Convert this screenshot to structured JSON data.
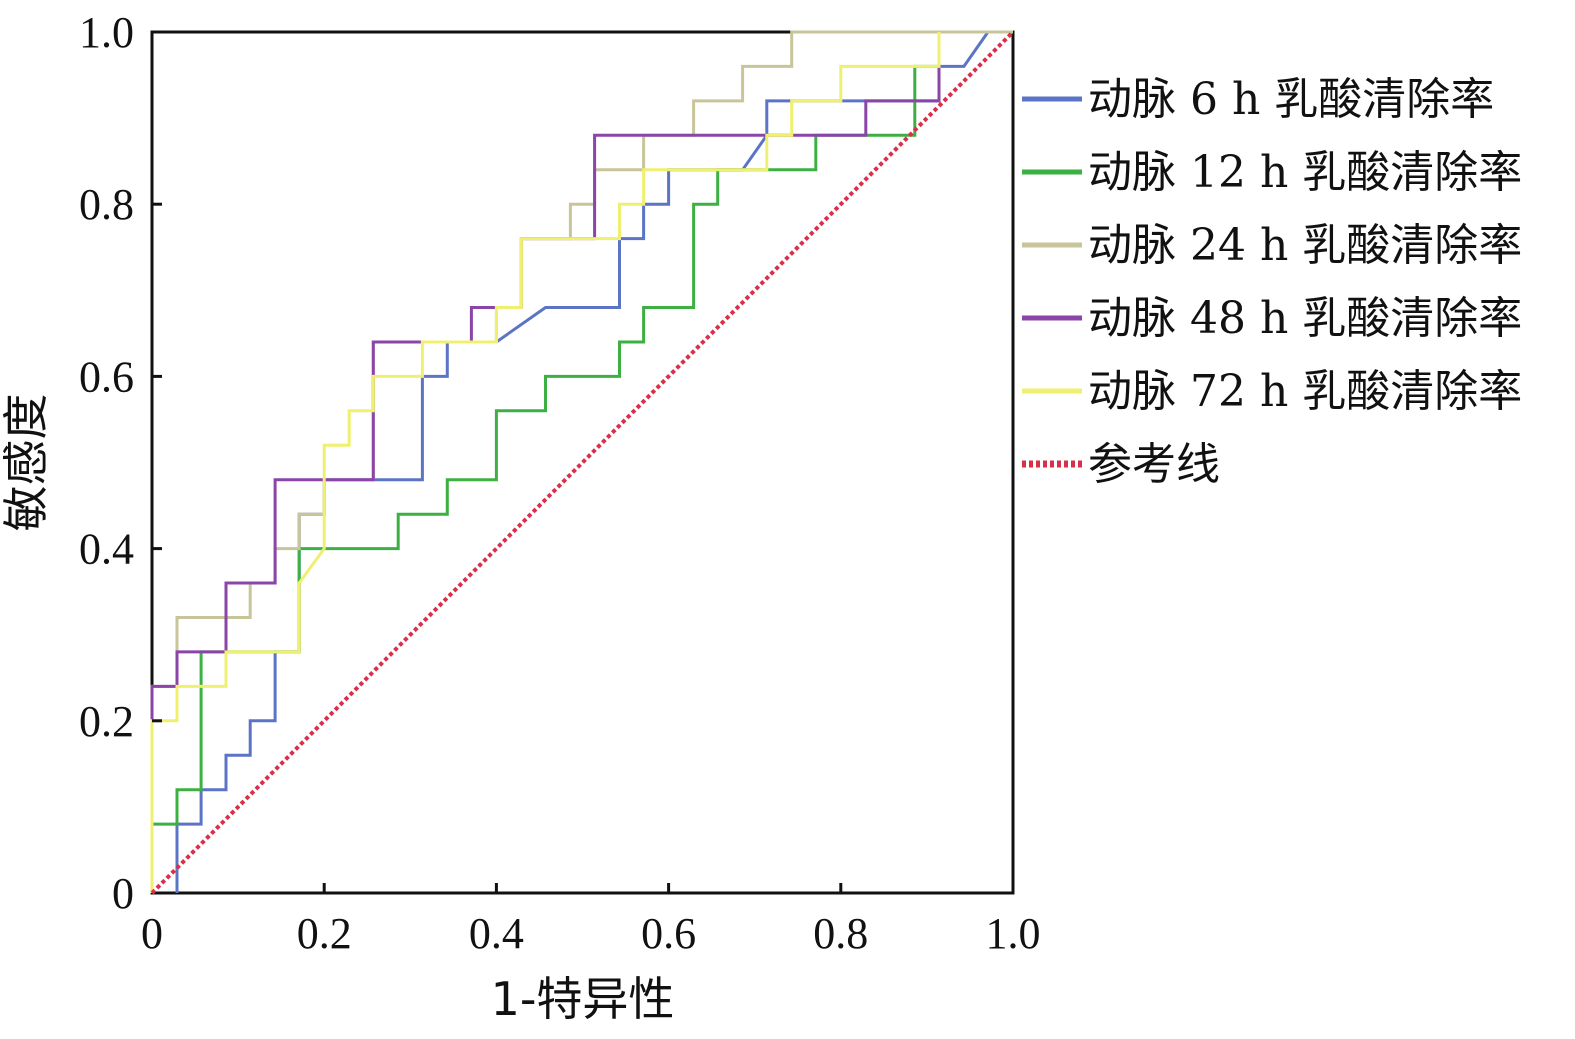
{
  "chart_data": {
    "type": "line",
    "xlabel": "1-特异性",
    "ylabel": "敏感度",
    "xlim": [
      0,
      1
    ],
    "ylim": [
      0,
      1
    ],
    "xticks": [
      "0",
      "0.2",
      "0.4",
      "0.6",
      "0.8",
      "1.0"
    ],
    "yticks": [
      "0",
      "0.2",
      "0.4",
      "0.6",
      "0.8",
      "1.0"
    ],
    "grid": false,
    "legend_position": "right",
    "series": [
      {
        "name": "动脉 6 h 乳酸清除率",
        "color": "#5b74c6",
        "x": [
          0.029,
          0.029,
          0.057,
          0.057,
          0.086,
          0.086,
          0.114,
          0.114,
          0.143,
          0.143,
          0.171,
          0.171,
          0.2,
          0.2,
          0.229,
          0.257,
          0.286,
          0.314,
          0.314,
          0.343,
          0.343,
          0.4,
          0.457,
          0.486,
          0.514,
          0.543,
          0.543,
          0.571,
          0.571,
          0.6,
          0.6,
          0.629,
          0.657,
          0.686,
          0.714,
          0.714,
          0.743,
          0.771,
          0.8,
          0.829,
          0.857,
          0.886,
          0.914,
          0.914,
          0.943,
          0.971,
          1.0
        ],
        "y": [
          0,
          0.08,
          0.08,
          0.12,
          0.12,
          0.16,
          0.16,
          0.2,
          0.2,
          0.28,
          0.28,
          0.44,
          0.44,
          0.48,
          0.48,
          0.48,
          0.48,
          0.48,
          0.6,
          0.6,
          0.64,
          0.64,
          0.68,
          0.68,
          0.68,
          0.68,
          0.76,
          0.76,
          0.8,
          0.8,
          0.84,
          0.84,
          0.84,
          0.84,
          0.88,
          0.92,
          0.92,
          0.92,
          0.92,
          0.92,
          0.92,
          0.92,
          0.92,
          0.96,
          0.96,
          1.0,
          1.0
        ]
      },
      {
        "name": "动脉 12 h 乳酸清除率",
        "color": "#3cb043",
        "x": [
          0,
          0,
          0.029,
          0.029,
          0.057,
          0.057,
          0.171,
          0.171,
          0.286,
          0.286,
          0.343,
          0.343,
          0.4,
          0.4,
          0.457,
          0.457,
          0.543,
          0.543,
          0.571,
          0.571,
          0.629,
          0.629,
          0.657,
          0.657,
          0.771,
          0.771,
          0.886,
          0.886,
          0.914,
          0.914,
          0.971,
          1.0
        ],
        "y": [
          0,
          0.08,
          0.08,
          0.12,
          0.12,
          0.28,
          0.28,
          0.4,
          0.4,
          0.44,
          0.44,
          0.48,
          0.48,
          0.56,
          0.56,
          0.6,
          0.6,
          0.64,
          0.64,
          0.68,
          0.68,
          0.8,
          0.8,
          0.84,
          0.84,
          0.88,
          0.88,
          0.96,
          0.96,
          1.0,
          1.0,
          1.0
        ]
      },
      {
        "name": "动脉 24 h 乳酸清除率",
        "color": "#c9c59a",
        "x": [
          0,
          0,
          0.029,
          0.029,
          0.114,
          0.114,
          0.143,
          0.143,
          0.171,
          0.171,
          0.2,
          0.2,
          0.257,
          0.257,
          0.343,
          0.343,
          0.4,
          0.4,
          0.429,
          0.429,
          0.486,
          0.486,
          0.514,
          0.514,
          0.571,
          0.571,
          0.629,
          0.629,
          0.686,
          0.686,
          0.743,
          0.743,
          0.914,
          0.914,
          1.0
        ],
        "y": [
          0,
          0.24,
          0.24,
          0.32,
          0.32,
          0.36,
          0.36,
          0.4,
          0.4,
          0.44,
          0.44,
          0.48,
          0.48,
          0.64,
          0.64,
          0.64,
          0.64,
          0.68,
          0.68,
          0.76,
          0.76,
          0.8,
          0.8,
          0.84,
          0.84,
          0.88,
          0.88,
          0.92,
          0.92,
          0.96,
          0.96,
          1.0,
          1.0,
          1.0,
          1.0
        ]
      },
      {
        "name": "动脉 48 h 乳酸清除率",
        "color": "#8b45a8",
        "x": [
          0,
          0,
          0.029,
          0.029,
          0.086,
          0.086,
          0.143,
          0.143,
          0.257,
          0.257,
          0.371,
          0.371,
          0.4,
          0.4,
          0.429,
          0.429,
          0.514,
          0.514,
          0.829,
          0.829,
          0.914,
          0.914
        ],
        "y": [
          0,
          0.24,
          0.24,
          0.28,
          0.28,
          0.36,
          0.36,
          0.48,
          0.48,
          0.64,
          0.64,
          0.68,
          0.68,
          0.68,
          0.68,
          0.76,
          0.76,
          0.88,
          0.88,
          0.92,
          0.92,
          0.96
        ]
      },
      {
        "name": "动脉 72 h 乳酸清除率",
        "color": "#f0f070",
        "x": [
          0,
          0,
          0.029,
          0.029,
          0.086,
          0.086,
          0.171,
          0.171,
          0.2,
          0.2,
          0.229,
          0.229,
          0.257,
          0.257,
          0.314,
          0.314,
          0.343,
          0.4,
          0.4,
          0.429,
          0.429,
          0.514,
          0.514,
          0.543,
          0.543,
          0.571,
          0.571,
          0.714,
          0.714,
          0.743,
          0.743,
          0.8,
          0.8,
          0.914,
          0.914
        ],
        "y": [
          0,
          0.2,
          0.2,
          0.24,
          0.24,
          0.28,
          0.28,
          0.36,
          0.4,
          0.52,
          0.52,
          0.56,
          0.56,
          0.6,
          0.6,
          0.64,
          0.64,
          0.64,
          0.68,
          0.68,
          0.76,
          0.76,
          0.76,
          0.76,
          0.8,
          0.8,
          0.84,
          0.84,
          0.88,
          0.88,
          0.92,
          0.92,
          0.96,
          0.96,
          1.0
        ]
      },
      {
        "name": "参考线",
        "color": "#d9304a",
        "dashed": true,
        "x": [
          0,
          1
        ],
        "y": [
          0,
          1
        ]
      }
    ]
  }
}
